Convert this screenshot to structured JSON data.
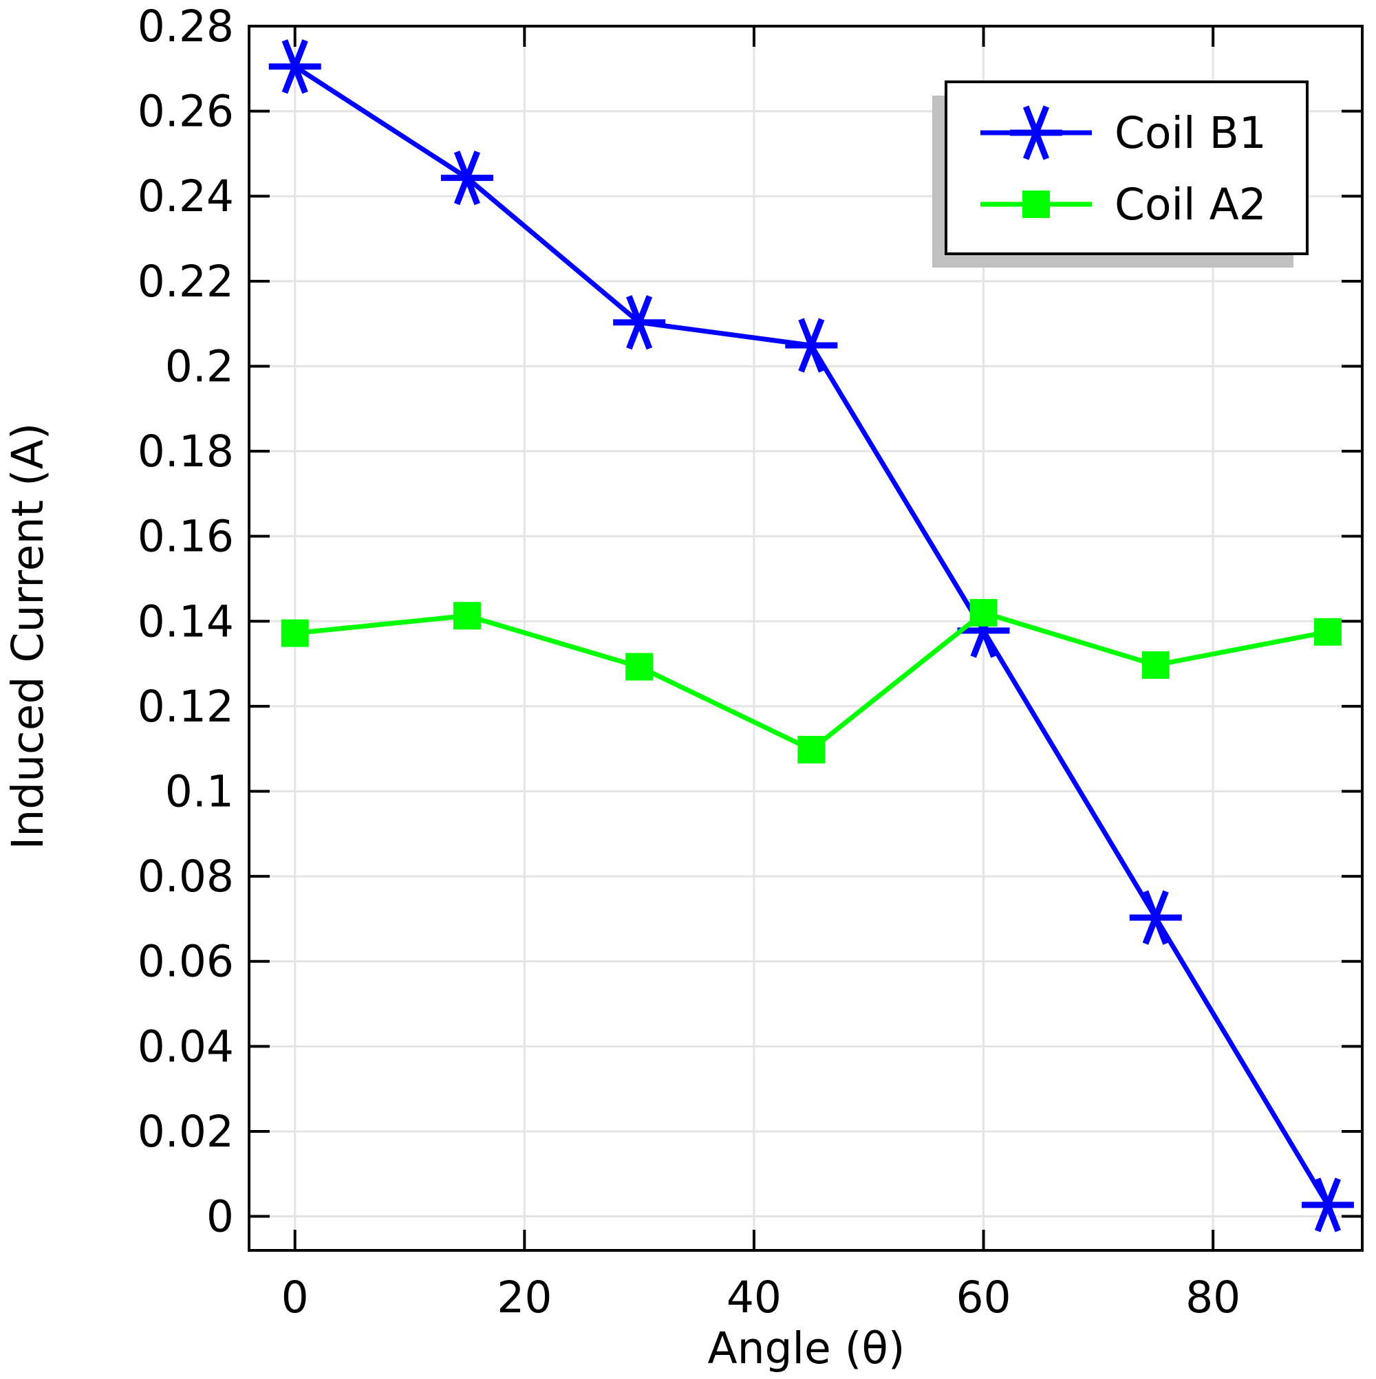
{
  "chart_data": {
    "type": "line",
    "title": "",
    "xlabel": "Angle (θ)",
    "ylabel": "Induced Current (A)",
    "xlim": [
      -4,
      93
    ],
    "ylim": [
      -0.008,
      0.28
    ],
    "grid": true,
    "legend_position": "top-right",
    "x_ticks": [
      0,
      20,
      40,
      60,
      80
    ],
    "x_tick_labels": [
      "0",
      "20",
      "40",
      "60",
      "80"
    ],
    "y_ticks": [
      0,
      0.02,
      0.04,
      0.06,
      0.08,
      0.1,
      0.12,
      0.14,
      0.16,
      0.18,
      0.2,
      0.22,
      0.24,
      0.26,
      0.28
    ],
    "y_tick_labels": [
      "0",
      "0.02",
      "0.04",
      "0.06",
      "0.08",
      "0.1",
      "0.12",
      "0.14",
      "0.16",
      "0.18",
      "0.2",
      "0.22",
      "0.24",
      "0.26",
      "0.28"
    ],
    "x": [
      0,
      15,
      30,
      45,
      60,
      75,
      90
    ],
    "series": [
      {
        "name": "Coil B1",
        "color": "#0000ff",
        "marker": "asterisk",
        "values": [
          0.2705,
          0.2443,
          0.2103,
          0.2049,
          0.1378,
          0.0703,
          0.0027
        ]
      },
      {
        "name": "Coil A2",
        "color": "#00ff00",
        "marker": "square",
        "values": [
          0.1372,
          0.1413,
          0.1293,
          0.1098,
          0.142,
          0.1297,
          0.1375
        ]
      }
    ]
  }
}
